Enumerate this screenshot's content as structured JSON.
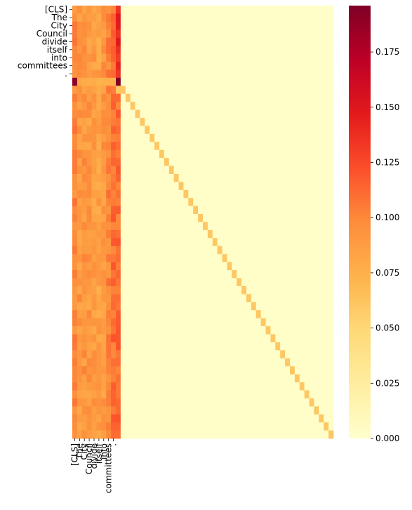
{
  "chart_data": {
    "type": "heatmap",
    "title": "",
    "xlabel": "",
    "ylabel": "",
    "rows": 54,
    "cols": 54,
    "x_tick_labels": [
      "[CLS]",
      "The",
      "City",
      "Council",
      "divide",
      "itself",
      "into",
      "committees",
      "."
    ],
    "y_tick_labels": [
      "[CLS]",
      "The",
      "City",
      "Council",
      "divide",
      "itself",
      "into",
      "committees",
      "."
    ],
    "colormap": "YlOrRd",
    "colorbar": {
      "vmin": 0.0,
      "vmax": 0.196,
      "ticks": [
        0.0,
        0.025,
        0.05,
        0.075,
        0.1,
        0.125,
        0.15,
        0.175
      ],
      "tick_labels": [
        "0.000",
        "0.025",
        "0.050",
        "0.075",
        "0.100",
        "0.125",
        "0.150",
        "0.175"
      ]
    },
    "structure": {
      "attended_columns": 10,
      "description_values": {
        "background": 0.002,
        "diagonal_padding": 0.06,
        "dominant_row_index": 9,
        "dominant_row_first_col": 0.19,
        "dominant_row_last_col": 0.196
      }
    }
  }
}
